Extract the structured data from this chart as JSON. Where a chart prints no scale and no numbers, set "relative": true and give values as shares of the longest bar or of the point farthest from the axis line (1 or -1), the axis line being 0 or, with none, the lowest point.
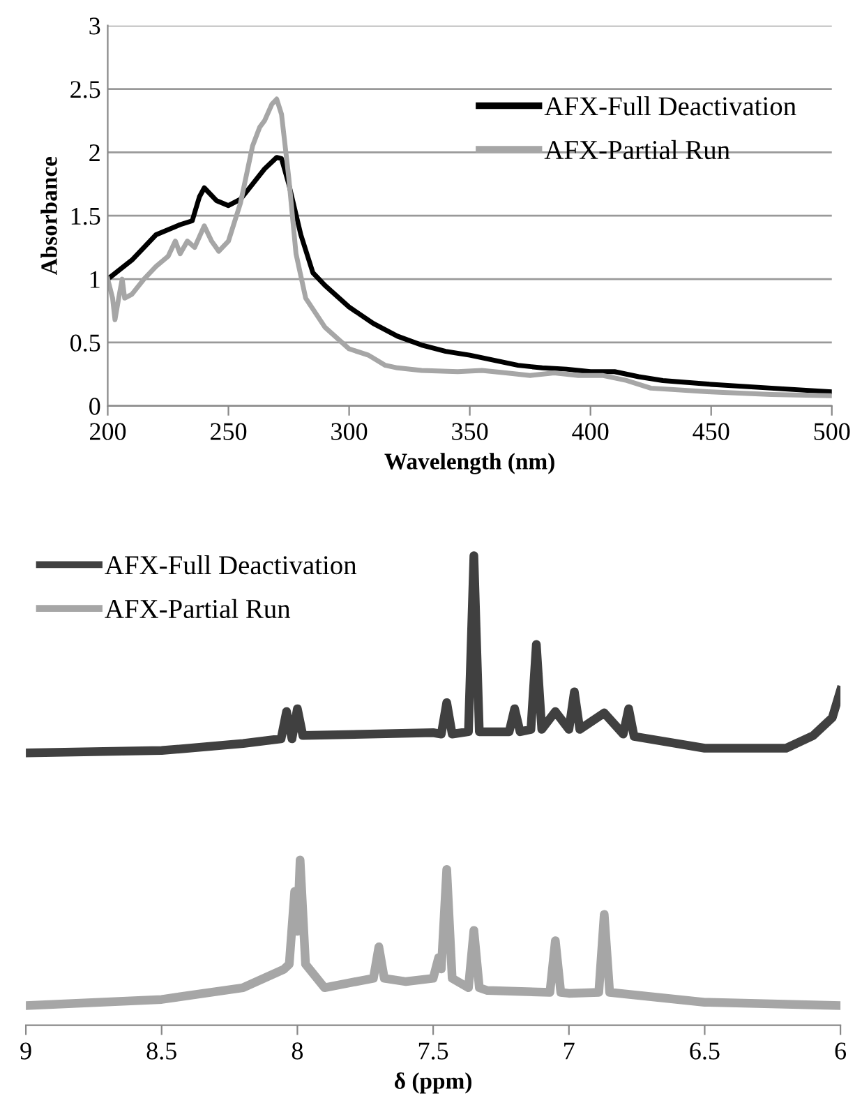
{
  "chart_data": [
    {
      "type": "line",
      "xlabel": "Wavelength (nm)",
      "ylabel": "Absorbance",
      "xlim": [
        200,
        500
      ],
      "xticks": [
        200,
        250,
        300,
        350,
        400,
        450,
        500
      ],
      "ylim": [
        0,
        3
      ],
      "yticks": [
        0,
        0.5,
        1,
        1.5,
        2,
        2.5,
        3
      ],
      "grid": "y",
      "legend": "top right",
      "marker": "none",
      "line_style": "solid",
      "series": [
        {
          "name": "AFX-Full Deactivation",
          "color": "#000000",
          "x": [
            200,
            210,
            220,
            230,
            235,
            238,
            240,
            245,
            250,
            255,
            260,
            265,
            270,
            272,
            275,
            280,
            285,
            290,
            300,
            310,
            320,
            330,
            340,
            350,
            360,
            370,
            380,
            390,
            400,
            410,
            420,
            430,
            450,
            475,
            500
          ],
          "values": [
            1.0,
            1.15,
            1.35,
            1.43,
            1.46,
            1.65,
            1.72,
            1.62,
            1.58,
            1.63,
            1.75,
            1.87,
            1.96,
            1.95,
            1.75,
            1.35,
            1.05,
            0.95,
            0.78,
            0.65,
            0.55,
            0.48,
            0.43,
            0.4,
            0.36,
            0.32,
            0.3,
            0.29,
            0.27,
            0.27,
            0.23,
            0.2,
            0.17,
            0.14,
            0.11
          ]
        },
        {
          "name": "AFX-Partial Run",
          "color": "#a6a6a6",
          "x": [
            200,
            202,
            203,
            205,
            206,
            207,
            210,
            215,
            220,
            225,
            228,
            230,
            233,
            236,
            240,
            243,
            246,
            250,
            255,
            260,
            263,
            265,
            268,
            270,
            272,
            275,
            278,
            282,
            290,
            300,
            308,
            315,
            320,
            330,
            345,
            355,
            365,
            375,
            385,
            395,
            405,
            415,
            425,
            450,
            475,
            500
          ],
          "values": [
            1.0,
            0.85,
            0.68,
            0.9,
            1.0,
            0.85,
            0.88,
            1.0,
            1.1,
            1.18,
            1.3,
            1.2,
            1.3,
            1.25,
            1.42,
            1.3,
            1.22,
            1.3,
            1.6,
            2.05,
            2.2,
            2.25,
            2.38,
            2.42,
            2.3,
            1.8,
            1.2,
            0.85,
            0.62,
            0.45,
            0.4,
            0.32,
            0.3,
            0.28,
            0.27,
            0.28,
            0.26,
            0.24,
            0.26,
            0.24,
            0.24,
            0.2,
            0.14,
            0.11,
            0.09,
            0.08
          ]
        }
      ]
    },
    {
      "type": "line",
      "xlabel": "δ (ppm)",
      "relative": true,
      "xlim": [
        9,
        6
      ],
      "xticks": [
        9,
        8.5,
        8,
        7.5,
        7,
        6.5,
        6
      ],
      "tick_labels": "x",
      "grid": false,
      "legend": "top left",
      "marker": "none",
      "line_style": "solid",
      "series": [
        {
          "name": "AFX-Full Deactivation",
          "color": "#404040",
          "x": [
            9,
            8.5,
            8.2,
            8.06,
            8.04,
            8.02,
            8.0,
            7.98,
            7.5,
            7.47,
            7.45,
            7.43,
            7.37,
            7.35,
            7.33,
            7.22,
            7.2,
            7.18,
            7.14,
            7.12,
            7.1,
            7.05,
            7.0,
            6.98,
            6.96,
            6.87,
            6.8,
            6.78,
            6.76,
            6.5,
            6.2,
            6.1,
            6.03,
            6.0
          ],
          "values": [
            0.58,
            0.585,
            0.6,
            0.61,
            0.668,
            0.61,
            0.674,
            0.617,
            0.623,
            0.62,
            0.687,
            0.62,
            0.625,
            1.0,
            0.625,
            0.625,
            0.674,
            0.625,
            0.63,
            0.811,
            0.63,
            0.668,
            0.63,
            0.71,
            0.63,
            0.665,
            0.62,
            0.674,
            0.615,
            0.59,
            0.59,
            0.617,
            0.655,
            0.713
          ]
        },
        {
          "name": "AFX-Partial Run",
          "color": "#a6a6a6",
          "x": [
            9,
            8.5,
            8.2,
            8.05,
            8.03,
            8.01,
            8.0,
            7.99,
            7.97,
            7.9,
            7.72,
            7.7,
            7.68,
            7.6,
            7.5,
            7.48,
            7.47,
            7.45,
            7.43,
            7.37,
            7.35,
            7.33,
            7.3,
            7.07,
            7.05,
            7.03,
            7.0,
            6.89,
            6.87,
            6.85,
            6.5,
            6.0
          ],
          "values": [
            0.042,
            0.055,
            0.08,
            0.119,
            0.13,
            0.285,
            0.2,
            0.352,
            0.13,
            0.08,
            0.1,
            0.167,
            0.1,
            0.093,
            0.1,
            0.144,
            0.12,
            0.332,
            0.1,
            0.08,
            0.202,
            0.08,
            0.074,
            0.07,
            0.18,
            0.07,
            0.068,
            0.07,
            0.236,
            0.07,
            0.049,
            0.042
          ]
        }
      ]
    }
  ]
}
